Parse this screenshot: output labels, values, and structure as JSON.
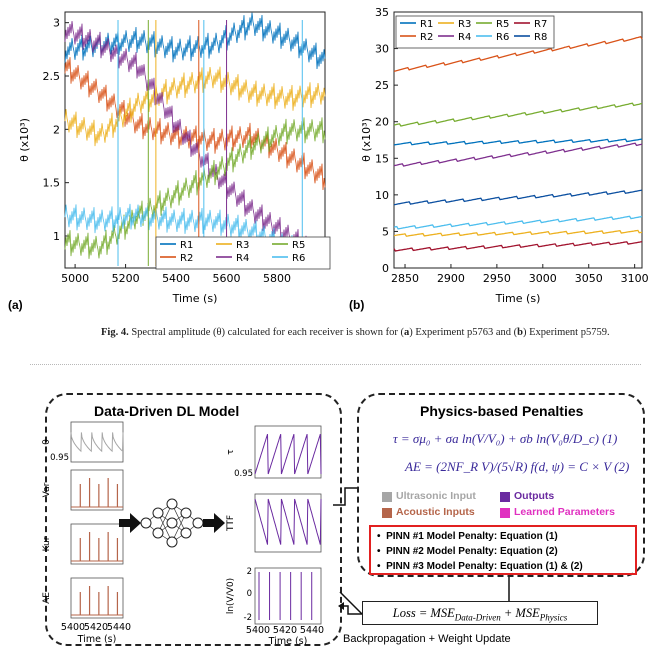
{
  "figure_a": {
    "label": "(a)",
    "ylabel": "θ (x10³)",
    "xlabel": "Time (s)",
    "xticks": [
      "5000",
      "5200",
      "5400",
      "5600",
      "5800"
    ],
    "yticks": [
      "1",
      "1.5",
      "2",
      "2.5",
      "3"
    ],
    "legend": [
      "R1",
      "R2",
      "R3",
      "R4",
      "R5",
      "R6"
    ]
  },
  "figure_b": {
    "label": "(b)",
    "ylabel": "θ (x10³)",
    "xlabel": "Time (s)",
    "xticks": [
      "2850",
      "2900",
      "2950",
      "3000",
      "3050",
      "3100"
    ],
    "yticks": [
      "0",
      "5",
      "10",
      "15",
      "20",
      "25",
      "30",
      "35"
    ],
    "legend": [
      "R1",
      "R2",
      "R3",
      "R4",
      "R5",
      "R6",
      "R7",
      "R8"
    ]
  },
  "caption": {
    "fig": "Fig. 4.",
    "text1": "Spectral amplitude (θ) calculated for each receiver is shown for (",
    "a": "a",
    "text2": ") Experiment p5763 and (",
    "b": "b",
    "text3": ") Experiment p5759."
  },
  "diagram": {
    "dd_title": "Data-Driven DL Model",
    "ph_title": "Physics-based Penalties",
    "inputs": [
      "θ",
      "Var",
      "Kur",
      "AE"
    ],
    "input_tick": "0.95",
    "input_xticks": [
      "5400",
      "5420",
      "5440"
    ],
    "outputs": [
      "τ",
      "TTF",
      "ln(V/V0)"
    ],
    "output_ticks": [
      "0.95",
      "2",
      "0",
      "-2"
    ],
    "output_xticks": [
      "5400",
      "5420",
      "5440"
    ],
    "time_label": "Time (s)",
    "eq1": "τ = σμ₀ + σa ln(V/V₀) + σb ln(V₀θ/D_c) (1)",
    "eq2": "AE = (2NF_R V)/(5√R) f(d, ψ) = C × V (2)",
    "legend": {
      "ultrasonic": "Ultrasonic Input",
      "acoustic": "Acoustic Inputs",
      "outputs": "Outputs",
      "learned": "Learned Parameters"
    },
    "pinn": [
      "PINN #1 Model Penalty: Equation (1)",
      "PINN #2 Model Penalty: Equation (2)",
      "PINN #3 Model Penalty: Equation (1) & (2)"
    ],
    "loss": "Loss = MSE",
    "loss_sub1": "Data-Driven",
    "loss_plus": " + MSE",
    "loss_sub2": "Physics",
    "backprop": "Backpropagation + Weight Update"
  },
  "colors": {
    "R1": "#0072bd",
    "R2": "#d95319",
    "R3": "#edb120",
    "R4": "#7e2f8e",
    "R5": "#77ac30",
    "R6": "#4dbeee",
    "R7": "#a2142f",
    "R8": "#0b4fa0",
    "ultrasonic": "#a6a6a6",
    "acoustic": "#b5654a",
    "outputs": "#6a2aa0",
    "learned": "#e030c0"
  },
  "chart_data": [
    {
      "type": "line",
      "title": "",
      "xlabel": "Time (s)",
      "ylabel": "θ (x10³)",
      "xlim": [
        4960,
        5990
      ],
      "ylim": [
        0.7,
        3.1
      ],
      "series": [
        {
          "name": "R1",
          "x": [
            4960,
            5100,
            5250,
            5400,
            5550,
            5700,
            5850,
            5990
          ],
          "values": [
            2.75,
            2.8,
            2.85,
            2.75,
            2.8,
            3.0,
            2.85,
            2.65
          ]
        },
        {
          "name": "R2",
          "x": [
            4960,
            5100,
            5250,
            5400,
            5550,
            5700,
            5850,
            5990
          ],
          "values": [
            2.6,
            2.35,
            2.05,
            1.95,
            1.9,
            1.95,
            1.75,
            1.55
          ]
        },
        {
          "name": "R3",
          "x": [
            4960,
            5100,
            5250,
            5400,
            5550,
            5700,
            5850,
            5990
          ],
          "values": [
            2.1,
            1.95,
            2.25,
            2.4,
            2.5,
            2.35,
            2.3,
            2.35
          ]
        },
        {
          "name": "R4",
          "x": [
            4960,
            5100,
            5250,
            5400,
            5550,
            5700,
            5850,
            5990
          ],
          "values": [
            2.95,
            2.8,
            2.6,
            2.05,
            1.6,
            1.25,
            1.0,
            0.8
          ]
        },
        {
          "name": "R5",
          "x": [
            4960,
            5100,
            5250,
            5400,
            5550,
            5700,
            5850,
            5990
          ],
          "values": [
            0.95,
            0.9,
            1.2,
            1.4,
            1.6,
            1.85,
            2.0,
            2.0
          ]
        },
        {
          "name": "R6",
          "x": [
            4960,
            5100,
            5250,
            5400,
            5550,
            5700,
            5850,
            5990
          ],
          "values": [
            1.2,
            1.15,
            1.2,
            1.15,
            1.15,
            1.05,
            0.9,
            0.85
          ]
        }
      ]
    },
    {
      "type": "line",
      "title": "",
      "xlabel": "Time (s)",
      "ylabel": "θ (x10³)",
      "xlim": [
        2838,
        3108
      ],
      "ylim": [
        0,
        35
      ],
      "series": [
        {
          "name": "R1",
          "x": [
            2838,
            3108
          ],
          "values": [
            17.0,
            17.5
          ]
        },
        {
          "name": "R2",
          "x": [
            2838,
            3108
          ],
          "values": [
            27.0,
            31.5
          ]
        },
        {
          "name": "R3",
          "x": [
            2838,
            3108
          ],
          "values": [
            4.5,
            5.0
          ]
        },
        {
          "name": "R4",
          "x": [
            2838,
            3108
          ],
          "values": [
            14.0,
            17.0
          ]
        },
        {
          "name": "R5",
          "x": [
            2838,
            3108
          ],
          "values": [
            19.5,
            22.5
          ]
        },
        {
          "name": "R6",
          "x": [
            2838,
            3108
          ],
          "values": [
            5.5,
            7.0
          ]
        },
        {
          "name": "R7",
          "x": [
            2838,
            3108
          ],
          "values": [
            2.5,
            3.5
          ]
        },
        {
          "name": "R8",
          "x": [
            2838,
            3108
          ],
          "values": [
            8.8,
            10.5
          ]
        }
      ]
    }
  ]
}
